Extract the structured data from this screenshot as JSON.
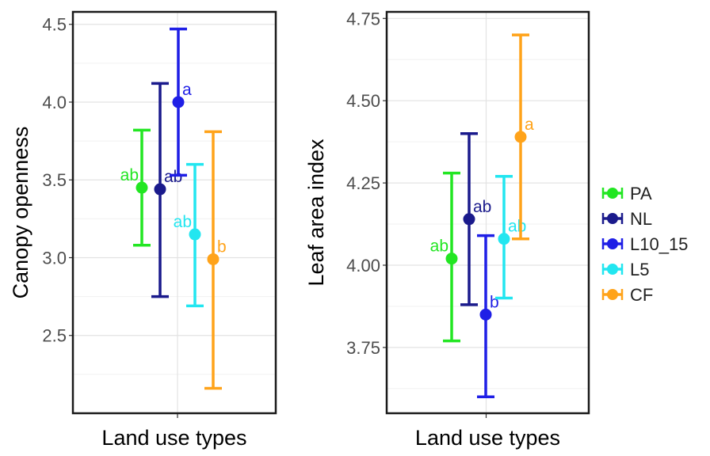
{
  "chart_data": [
    {
      "type": "errorbar",
      "xlabel": "Land use types",
      "ylabel": "Canopy openness",
      "ylim": [
        2.0,
        4.58
      ],
      "yticks": [
        "2.5",
        "3.0",
        "3.5",
        "4.0",
        "4.5"
      ],
      "grid": true,
      "points": [
        {
          "series": "PA",
          "y": 3.45,
          "lower": 3.08,
          "upper": 3.82,
          "label": "ab"
        },
        {
          "series": "NL",
          "y": 3.44,
          "lower": 2.75,
          "upper": 4.12,
          "label": "ab"
        },
        {
          "series": "L10_15",
          "y": 4.0,
          "lower": 3.53,
          "upper": 4.47,
          "label": "a"
        },
        {
          "series": "L5",
          "y": 3.15,
          "lower": 2.69,
          "upper": 3.6,
          "label": "ab"
        },
        {
          "series": "CF",
          "y": 2.99,
          "lower": 2.16,
          "upper": 3.81,
          "label": "b"
        }
      ]
    },
    {
      "type": "errorbar",
      "xlabel": "Land use types",
      "ylabel": "Leaf area index",
      "ylim": [
        3.55,
        4.77
      ],
      "yticks": [
        "3.75",
        "4.00",
        "4.25",
        "4.50",
        "4.75"
      ],
      "grid": true,
      "points": [
        {
          "series": "PA",
          "y": 4.02,
          "lower": 3.77,
          "upper": 4.28,
          "label": "ab"
        },
        {
          "series": "NL",
          "y": 4.14,
          "lower": 3.88,
          "upper": 4.4,
          "label": "ab"
        },
        {
          "series": "L10_15",
          "y": 3.85,
          "lower": 3.6,
          "upper": 4.09,
          "label": "b"
        },
        {
          "series": "L5",
          "y": 4.08,
          "lower": 3.9,
          "upper": 4.27,
          "label": "ab"
        },
        {
          "series": "CF",
          "y": 4.39,
          "lower": 4.08,
          "upper": 4.7,
          "label": "a"
        }
      ]
    }
  ],
  "legend": {
    "position": "right",
    "items": [
      {
        "name": "PA",
        "color": "#22e622"
      },
      {
        "name": "NL",
        "color": "#1a1a8c"
      },
      {
        "name": "L10_15",
        "color": "#1f1fe6"
      },
      {
        "name": "L5",
        "color": "#22e6f0"
      },
      {
        "name": "CF",
        "color": "#ffa31a"
      }
    ]
  }
}
